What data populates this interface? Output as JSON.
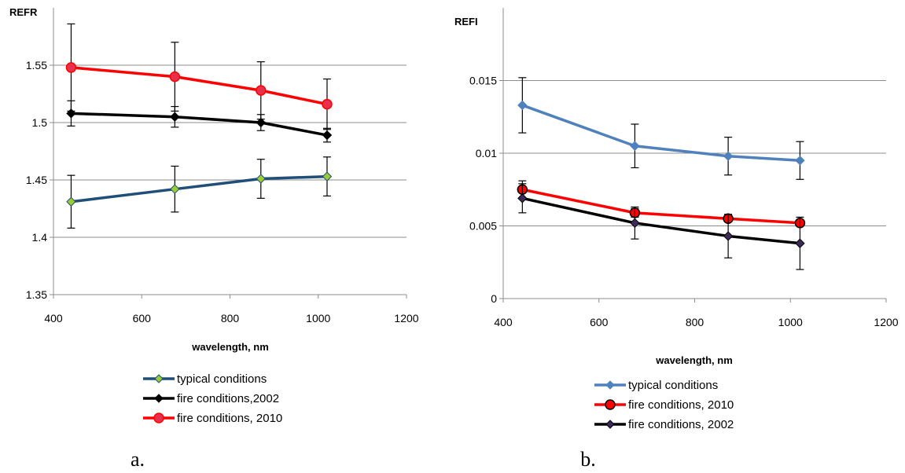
{
  "chart_data": [
    {
      "type": "line",
      "panel_label": "a.",
      "ylabel": "REFR",
      "xlabel": "wavelength, nm",
      "xlim": [
        400,
        1200
      ],
      "ylim": [
        1.35,
        1.6
      ],
      "x_ticks": [
        "400",
        "600",
        "800",
        "1000",
        "1200"
      ],
      "y_ticks": [
        "1.35",
        "1.4",
        "1.45",
        "1.5",
        "1.55"
      ],
      "y_tick_values": [
        1.35,
        1.4,
        1.45,
        1.5,
        1.55
      ],
      "x_tick_values": [
        400,
        600,
        800,
        1000,
        1200
      ],
      "grid": "horizontal",
      "legend_position": "bottom",
      "series": [
        {
          "name": "typical conditions",
          "color": "#1f4e79",
          "marker": "diamond",
          "marker_fill": "#9acd32",
          "x": [
            440,
            675,
            870,
            1020
          ],
          "y": [
            1.431,
            1.442,
            1.451,
            1.453
          ],
          "err": [
            0.023,
            0.02,
            0.017,
            0.017
          ]
        },
        {
          "name": "fire conditions,2002",
          "color": "#000000",
          "marker": "diamond",
          "marker_fill": "#000000",
          "x": [
            440,
            675,
            870,
            1020
          ],
          "y": [
            1.508,
            1.505,
            1.5,
            1.489
          ],
          "err": [
            0.011,
            0.009,
            0.007,
            0.006
          ]
        },
        {
          "name": "fire conditions, 2010",
          "color": "#ff0000",
          "marker": "circle",
          "marker_fill": "#e8304a",
          "x": [
            440,
            675,
            870,
            1020
          ],
          "y": [
            1.548,
            1.54,
            1.528,
            1.516
          ],
          "err": [
            0.038,
            0.03,
            0.025,
            0.022
          ]
        }
      ]
    },
    {
      "type": "line",
      "panel_label": "b.",
      "ylabel": "REFI",
      "xlabel": "wavelength, nm",
      "xlim": [
        400,
        1200
      ],
      "ylim": [
        0,
        0.02
      ],
      "x_ticks": [
        "400",
        "600",
        "800",
        "1000",
        "1200"
      ],
      "y_ticks": [
        "0",
        "0.005",
        "0.01",
        "0.015"
      ],
      "y_tick_values": [
        0,
        0.005,
        0.01,
        0.015
      ],
      "x_tick_values": [
        400,
        600,
        800,
        1000,
        1200
      ],
      "grid": "horizontal",
      "legend_position": "bottom",
      "series": [
        {
          "name": "typical conditions",
          "color": "#4f81bd",
          "marker": "diamond",
          "marker_fill": "#4f81bd",
          "x": [
            440,
            675,
            870,
            1020
          ],
          "y": [
            0.0133,
            0.0105,
            0.0098,
            0.0095
          ],
          "err": [
            0.0019,
            0.0015,
            0.0013,
            0.0013
          ]
        },
        {
          "name": "fire conditions, 2010",
          "color": "#ff0000",
          "marker": "circle",
          "marker_fill": "#ff0000",
          "x": [
            440,
            675,
            870,
            1020
          ],
          "y": [
            0.0075,
            0.0059,
            0.0055,
            0.0052
          ],
          "err": [
            0.0006,
            0.0003,
            0.0002,
            0.0002
          ]
        },
        {
          "name": "fire conditions, 2002",
          "color": "#000000",
          "marker": "diamond",
          "marker_fill": "#3b2a5a",
          "x": [
            440,
            675,
            870,
            1020
          ],
          "y": [
            0.0069,
            0.0052,
            0.0043,
            0.0038
          ],
          "err": [
            0.001,
            0.0011,
            0.0015,
            0.0018
          ]
        }
      ]
    }
  ]
}
